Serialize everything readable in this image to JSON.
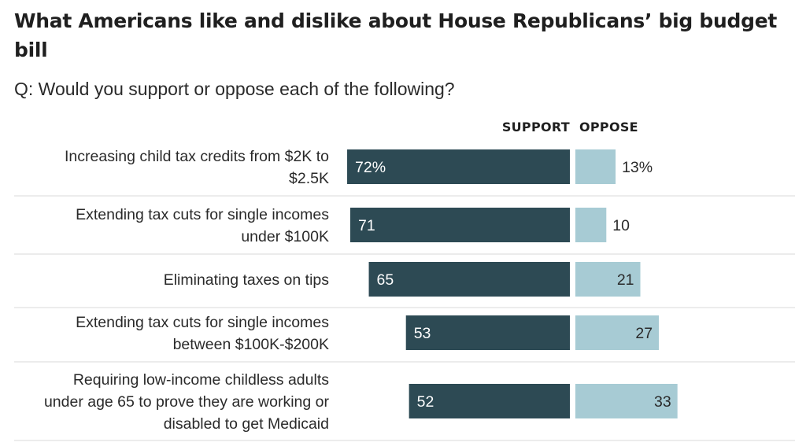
{
  "chart_data": {
    "type": "bar",
    "title": "What Americans like and dislike about House Republicans’ big budget bill",
    "subtitle": "Q: Would you support or oppose each of the following?",
    "series": [
      {
        "name": "SUPPORT",
        "color": "#2d4a54",
        "values": [
          72,
          71,
          65,
          53,
          52
        ],
        "labels": [
          "72%",
          "71",
          "65",
          "53",
          "52"
        ]
      },
      {
        "name": "OPPOSE",
        "color": "#a7cbd4",
        "values": [
          13,
          10,
          21,
          27,
          33
        ],
        "labels": [
          "13%",
          "10",
          "21",
          "27",
          "33"
        ]
      }
    ],
    "categories": [
      [
        "Increasing child tax credits from $2K to",
        "$2.5K"
      ],
      [
        "Extending tax cuts for single incomes",
        "under $100K"
      ],
      [
        "Eliminating taxes on tips"
      ],
      [
        "Extending tax cuts for single incomes",
        "between $100K-$200K"
      ],
      [
        "Requiring low-income childless adults",
        "under age 65 to prove they are working or",
        "disabled to get Medicaid"
      ]
    ],
    "xlim": [
      0,
      100
    ],
    "layout": "diverging horizontal bars, support left of center, oppose right of center",
    "grid": false,
    "legend": "column headers above bars"
  }
}
